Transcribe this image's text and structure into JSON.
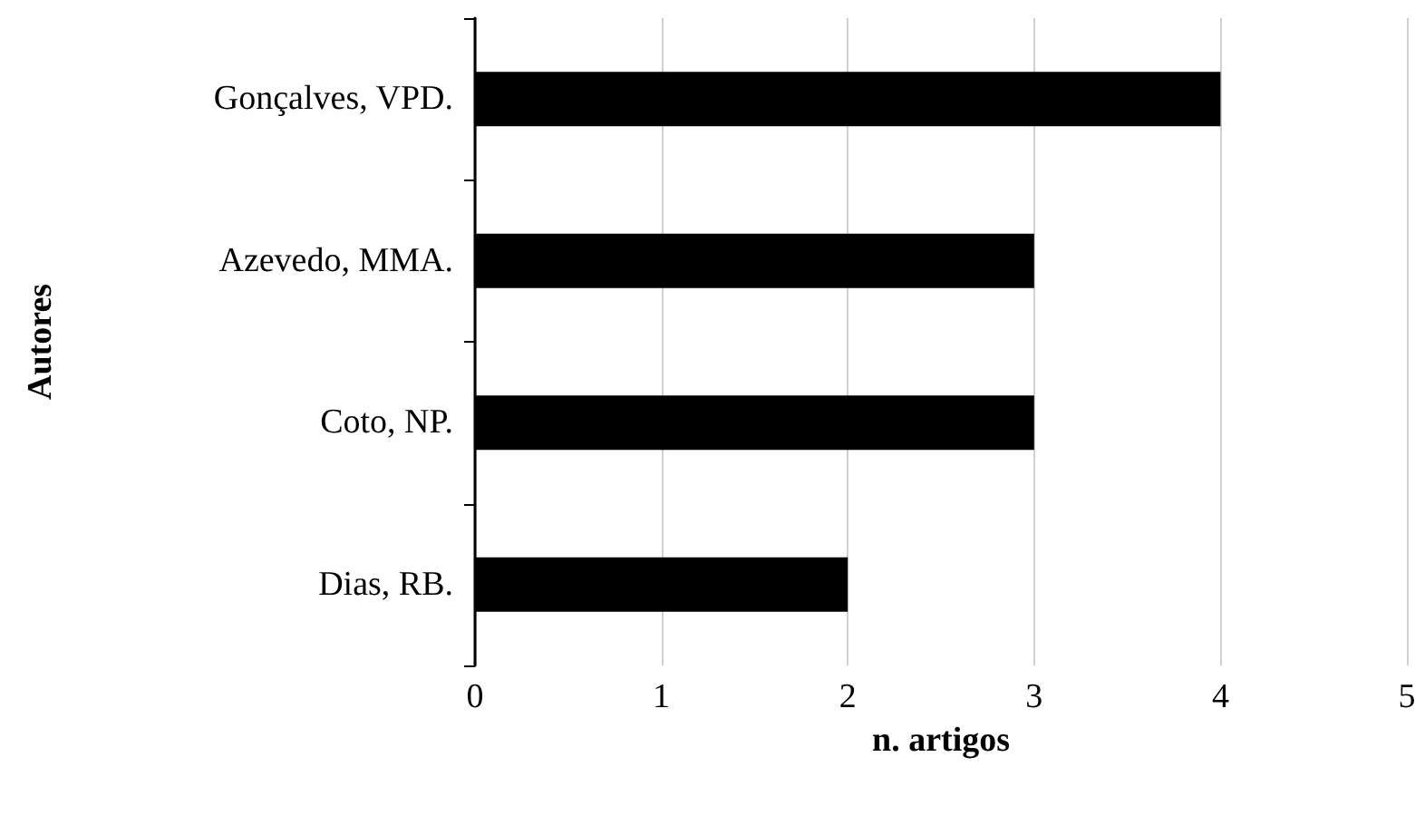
{
  "chart_data": {
    "type": "bar",
    "orientation": "horizontal",
    "categories": [
      "Gonçalves, VPD.",
      "Azevedo, MMA.",
      "Coto, NP.",
      "Dias, RB."
    ],
    "values": [
      4,
      3,
      3,
      2
    ],
    "color": "#000000",
    "xlabel": "n. artigos",
    "ylabel": "Autores",
    "xlim": [
      0,
      5
    ],
    "xticks": [
      0,
      1,
      2,
      3,
      4,
      5
    ],
    "grid": "x"
  }
}
